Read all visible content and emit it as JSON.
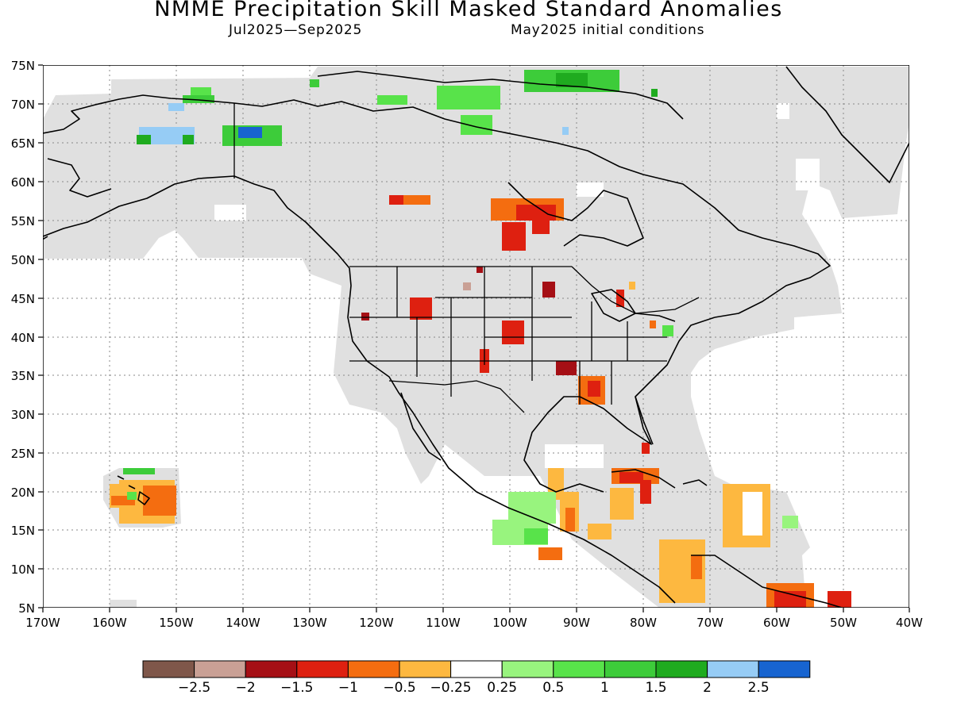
{
  "title": "NMME Precipitation Skill Masked Standard Anomalies",
  "season": "Jul2025—Sep2025",
  "initial_conditions": "May2025 initial conditions",
  "lat_ticks": [
    "75N",
    "70N",
    "65N",
    "60N",
    "55N",
    "50N",
    "45N",
    "40N",
    "35N",
    "30N",
    "25N",
    "20N",
    "15N",
    "10N",
    "5N"
  ],
  "lon_ticks": [
    "170W",
    "160W",
    "150W",
    "140W",
    "130W",
    "120W",
    "110W",
    "100W",
    "90W",
    "80W",
    "70W",
    "60W",
    "50W",
    "40W"
  ],
  "colorbar": {
    "colors": [
      "#7f574a",
      "#c9a095",
      "#a50f15",
      "#de2010",
      "#f46d10",
      "#fdb840",
      "#ffffff",
      "#98f47e",
      "#58e34a",
      "#3dcc3a",
      "#1fab1f",
      "#96ccf5",
      "#1764d0"
    ],
    "labels": [
      "−2.5",
      "−2",
      "−1.5",
      "−1",
      "−0.5",
      "−0.25",
      "0.25",
      "0.5",
      "1",
      "1.5",
      "2",
      "2.5"
    ]
  },
  "legend_colors": {
    "masked_gray": "#e0e0e0",
    "coastline": "#000000"
  }
}
